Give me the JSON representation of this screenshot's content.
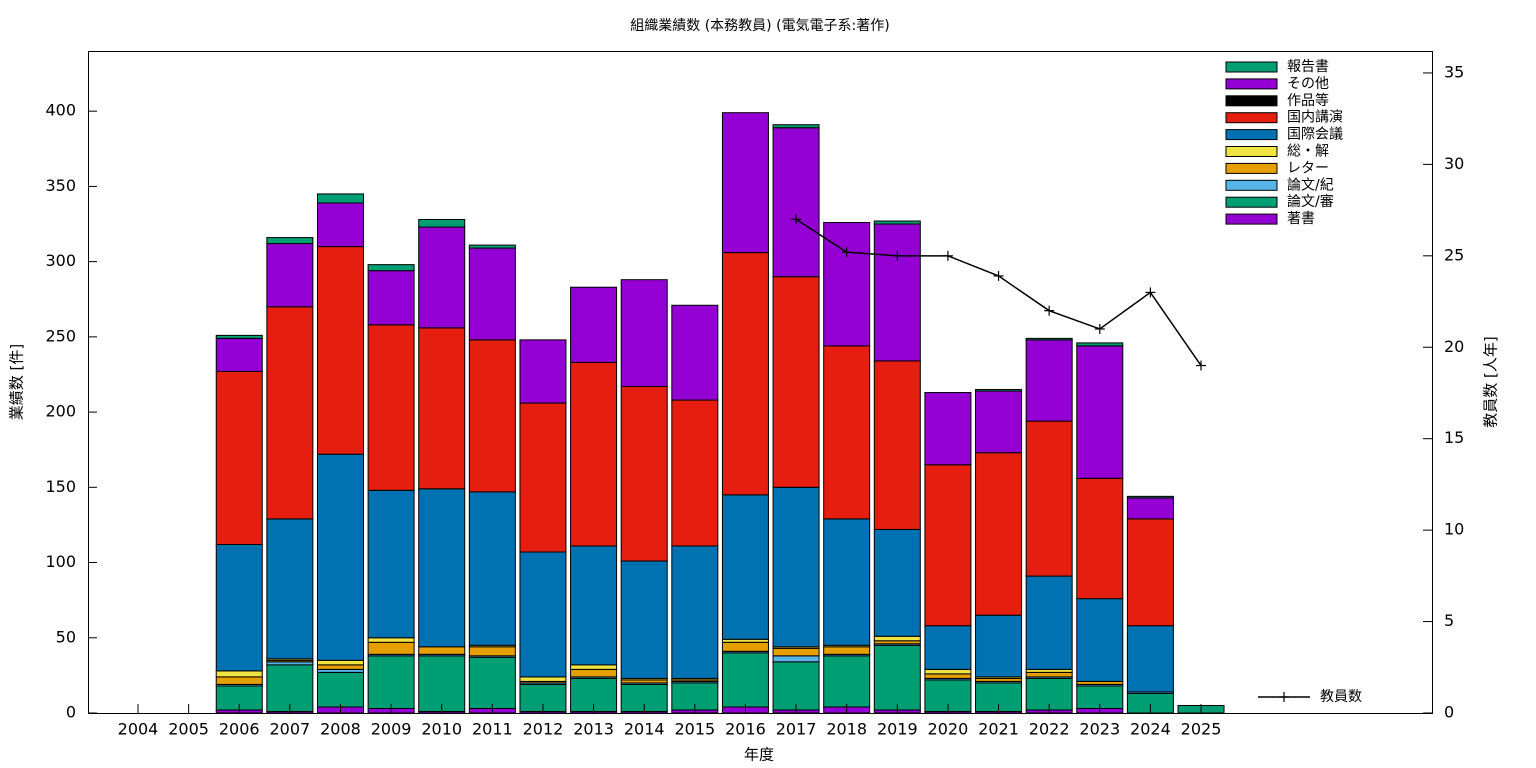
{
  "chart_data": {
    "type": "bar",
    "stacked": true,
    "title": "組織業績数 (本務教員) (電気電子系:著作)",
    "xlabel": "年度",
    "ylabel": "業績数 [件]",
    "y2label": "教員数 [人年]",
    "ylim": [
      0,
      440
    ],
    "y2lim": [
      0,
      36.2
    ],
    "yticks": [
      0,
      50,
      100,
      150,
      200,
      250,
      300,
      350,
      400
    ],
    "y2ticks": [
      0,
      5,
      10,
      15,
      20,
      25,
      30,
      35
    ],
    "grid": false,
    "legend_position": "top-right",
    "line_legend_position": "bottom-right",
    "categories": [
      "2004",
      "2005",
      "2006",
      "2007",
      "2008",
      "2009",
      "2010",
      "2011",
      "2012",
      "2013",
      "2014",
      "2015",
      "2016",
      "2017",
      "2018",
      "2019",
      "2020",
      "2021",
      "2022",
      "2023",
      "2024",
      "2025"
    ],
    "series": [
      {
        "name": "著書",
        "color": "#9400d3",
        "values": [
          0,
          0,
          2,
          1,
          4,
          3,
          1,
          3,
          1,
          1,
          1,
          2,
          4,
          2,
          4,
          2,
          1,
          1,
          2,
          3,
          0,
          0
        ]
      },
      {
        "name": "論文/審",
        "color": "#009e73",
        "values": [
          0,
          0,
          16,
          31,
          23,
          35,
          37,
          34,
          18,
          22,
          18,
          18,
          36,
          32,
          34,
          43,
          21,
          19,
          21,
          15,
          13,
          5
        ]
      },
      {
        "name": "論文/紀",
        "color": "#56b4e9",
        "values": [
          0,
          0,
          1,
          2,
          2,
          1,
          1,
          1,
          1,
          1,
          1,
          1,
          1,
          4,
          1,
          1,
          1,
          1,
          1,
          1,
          1,
          0
        ]
      },
      {
        "name": "レター",
        "color": "#e69f00",
        "values": [
          0,
          0,
          5,
          1,
          3,
          8,
          5,
          6,
          1,
          5,
          2,
          1,
          6,
          5,
          5,
          2,
          3,
          2,
          3,
          2,
          0,
          0
        ]
      },
      {
        "name": "総・解",
        "color": "#f0e442",
        "values": [
          0,
          0,
          4,
          1,
          3,
          3,
          0,
          1,
          3,
          3,
          1,
          1,
          2,
          1,
          1,
          3,
          3,
          1,
          2,
          0,
          0,
          0
        ]
      },
      {
        "name": "国際会議",
        "color": "#0072b2",
        "values": [
          0,
          0,
          84,
          93,
          137,
          98,
          105,
          102,
          83,
          79,
          78,
          88,
          96,
          106,
          84,
          71,
          29,
          41,
          62,
          55,
          44,
          0
        ]
      },
      {
        "name": "国内講演",
        "color": "#e51e10",
        "values": [
          0,
          0,
          115,
          141,
          138,
          110,
          107,
          101,
          99,
          122,
          116,
          97,
          161,
          140,
          115,
          112,
          107,
          108,
          103,
          80,
          71,
          0
        ]
      },
      {
        "name": "作品等",
        "color": "#000000",
        "values": [
          0,
          0,
          0,
          0,
          0,
          0,
          0,
          0,
          0,
          0,
          0,
          0,
          0,
          0,
          0,
          0,
          0,
          0,
          0,
          0,
          0,
          0
        ]
      },
      {
        "name": "その他",
        "color": "#9400d3",
        "values": [
          0,
          0,
          22,
          42,
          29,
          36,
          67,
          61,
          42,
          50,
          71,
          63,
          93,
          99,
          82,
          91,
          48,
          41,
          54,
          88,
          14,
          0
        ]
      },
      {
        "name": "報告書",
        "color": "#009e73",
        "values": [
          0,
          0,
          2,
          4,
          6,
          4,
          5,
          2,
          0,
          0,
          0,
          0,
          0,
          2,
          0,
          2,
          0,
          1,
          1,
          2,
          1,
          0
        ]
      }
    ],
    "line_series": {
      "name": "教員数",
      "axis": "y2",
      "color": "#000000",
      "marker": "plus",
      "x": [
        "2017",
        "2018",
        "2019",
        "2020",
        "2021",
        "2022",
        "2023",
        "2024",
        "2025"
      ],
      "values": [
        27,
        25.2,
        25,
        25,
        23.9,
        22,
        21,
        23,
        19
      ]
    }
  }
}
